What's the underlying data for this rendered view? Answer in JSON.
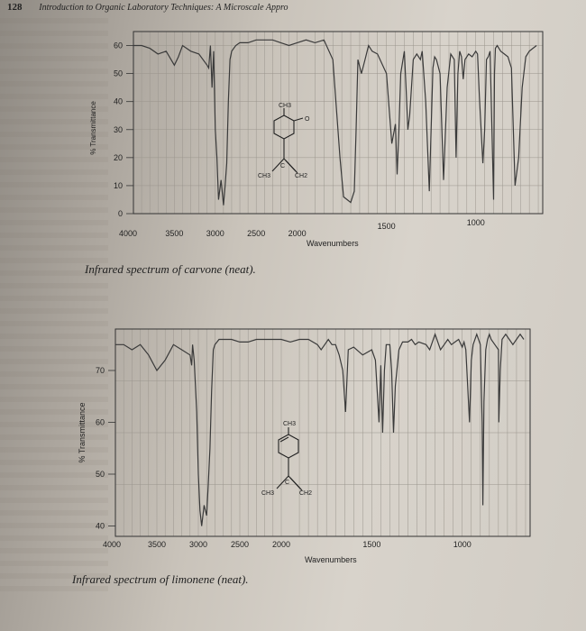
{
  "header": {
    "page_number": "128",
    "running_title": "Introduction to Organic Laboratory Techniques: A Microscale Appro"
  },
  "captions": {
    "carvone": "Infrared spectrum of carvone (neat).",
    "limonene": "Infrared spectrum of limonene (neat)."
  },
  "chart_data": [
    {
      "type": "line",
      "title": "",
      "xlabel": "Wavenumbers",
      "ylabel": "% Transmittance",
      "xlim": [
        4000,
        625
      ],
      "ylim": [
        0,
        65
      ],
      "xticks": [
        "4000",
        "3500",
        "3000",
        "2500",
        "2000",
        "1500",
        "1000"
      ],
      "yticks": [
        "0",
        "10",
        "20",
        "30",
        "40",
        "50",
        "60"
      ],
      "structure_labels": [
        "CH3",
        "O",
        "C",
        "CH3",
        "CH2"
      ],
      "series": [
        {
          "x": [
            4000,
            3900,
            3800,
            3700,
            3600,
            3500,
            3450,
            3400,
            3300,
            3200,
            3100,
            3080,
            3060,
            3040,
            3020,
            3000,
            2980,
            2960,
            2930,
            2900,
            2880,
            2860,
            2840,
            2820,
            2800,
            2750,
            2700,
            2600,
            2500,
            2400,
            2300,
            2200,
            2100,
            2000,
            1950,
            1900,
            1850,
            1800,
            1760,
            1740,
            1720,
            1700,
            1680,
            1670,
            1660,
            1640,
            1620,
            1600,
            1580,
            1550,
            1500,
            1470,
            1450,
            1440,
            1430,
            1420,
            1400,
            1390,
            1380,
            1370,
            1350,
            1330,
            1310,
            1300,
            1280,
            1260,
            1250,
            1240,
            1230,
            1220,
            1200,
            1180,
            1160,
            1140,
            1120,
            1110,
            1100,
            1090,
            1080,
            1070,
            1060,
            1040,
            1020,
            1000,
            990,
            980,
            960,
            950,
            940,
            930,
            920,
            900,
            895,
            890,
            880,
            860,
            840,
            820,
            800,
            780,
            760,
            740,
            720,
            700,
            680,
            660
          ],
          "y": [
            60,
            60,
            59,
            57,
            58,
            53,
            56,
            60,
            58,
            57,
            53,
            52,
            60,
            45,
            58,
            30,
            20,
            5,
            12,
            3,
            10,
            18,
            40,
            55,
            58,
            60,
            61,
            61,
            62,
            62,
            62,
            61,
            60,
            61,
            62,
            61,
            62,
            55,
            20,
            6,
            5,
            4,
            8,
            30,
            55,
            50,
            55,
            60,
            58,
            57,
            50,
            25,
            32,
            14,
            30,
            50,
            58,
            45,
            30,
            35,
            55,
            57,
            55,
            58,
            40,
            8,
            30,
            52,
            56,
            55,
            50,
            12,
            45,
            57,
            55,
            20,
            50,
            58,
            56,
            48,
            55,
            57,
            56,
            58,
            57,
            42,
            18,
            30,
            55,
            56,
            58,
            5,
            50,
            59,
            60,
            58,
            57,
            56,
            52,
            10,
            20,
            45,
            56,
            58,
            59,
            60
          ]
        }
      ]
    },
    {
      "type": "line",
      "title": "",
      "xlabel": "Wavenumbers",
      "ylabel": "% Transmittance",
      "xlim": [
        4000,
        625
      ],
      "ylim": [
        38,
        78
      ],
      "xticks": [
        "4000",
        "3500",
        "3000",
        "2500",
        "2000",
        "1500",
        "1000"
      ],
      "yticks": [
        "40",
        "50",
        "60",
        "70"
      ],
      "structure_labels": [
        "CH3",
        "C",
        "CH3",
        "CH2"
      ],
      "series": [
        {
          "x": [
            4000,
            3900,
            3800,
            3700,
            3650,
            3600,
            3500,
            3400,
            3300,
            3200,
            3100,
            3080,
            3070,
            3050,
            3020,
            3000,
            2980,
            2960,
            2930,
            2900,
            2880,
            2860,
            2840,
            2820,
            2800,
            2750,
            2700,
            2600,
            2500,
            2400,
            2300,
            2200,
            2100,
            2000,
            1950,
            1900,
            1850,
            1800,
            1780,
            1760,
            1740,
            1720,
            1700,
            1680,
            1660,
            1645,
            1630,
            1600,
            1550,
            1500,
            1480,
            1460,
            1450,
            1440,
            1430,
            1420,
            1400,
            1390,
            1380,
            1370,
            1350,
            1330,
            1300,
            1280,
            1260,
            1240,
            1200,
            1180,
            1160,
            1150,
            1140,
            1120,
            1100,
            1080,
            1060,
            1040,
            1020,
            1000,
            990,
            980,
            960,
            950,
            940,
            920,
            900,
            890,
            886,
            880,
            870,
            860,
            850,
            840,
            820,
            800,
            798,
            790,
            780,
            760,
            740,
            720,
            700,
            680,
            660
          ],
          "y": [
            75,
            75,
            74,
            75,
            74,
            73,
            70,
            72,
            75,
            74,
            73,
            71,
            75,
            72,
            62,
            50,
            43,
            40,
            44,
            42,
            48,
            55,
            66,
            74,
            75,
            76,
            76,
            76,
            75.5,
            75.5,
            76,
            76,
            76,
            76,
            75.5,
            76,
            76,
            75,
            74,
            75,
            76,
            75,
            75,
            73,
            70,
            62,
            74,
            74.5,
            73,
            74,
            72,
            60,
            71,
            58,
            70,
            75,
            75,
            70,
            58,
            67,
            74,
            75.5,
            75.5,
            76,
            75,
            75.5,
            75,
            74,
            76,
            77,
            76,
            74,
            75,
            76,
            75,
            75.5,
            76,
            74.5,
            75.5,
            74,
            60,
            72,
            75,
            77,
            75,
            60,
            44,
            64,
            74,
            76,
            77,
            76,
            75,
            74,
            60,
            70,
            76,
            77,
            76,
            75,
            76,
            77,
            76
          ]
        }
      ]
    }
  ]
}
